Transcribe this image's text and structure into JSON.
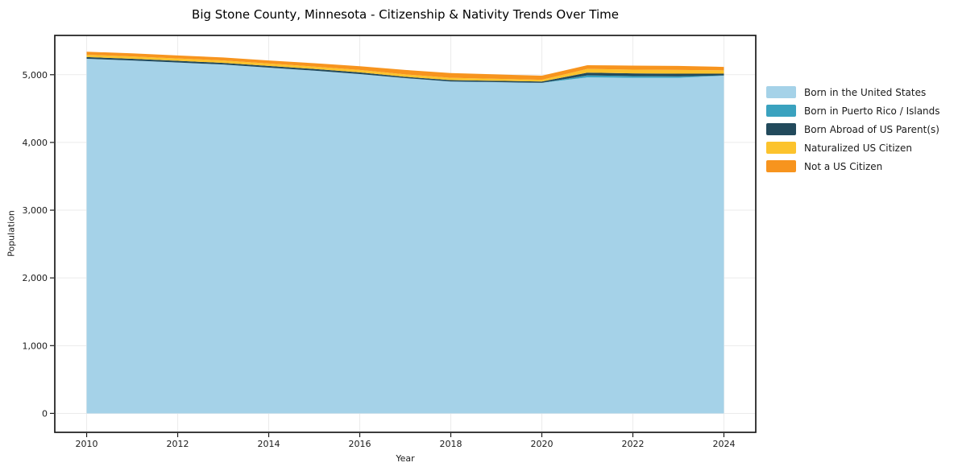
{
  "chart_data": {
    "type": "area",
    "stacked": true,
    "title": "Big Stone County, Minnesota - Citizenship & Nativity Trends Over Time",
    "xlabel": "Year",
    "ylabel": "Population",
    "x": [
      2010,
      2011,
      2012,
      2013,
      2014,
      2015,
      2016,
      2017,
      2018,
      2019,
      2020,
      2021,
      2022,
      2023,
      2024
    ],
    "series": [
      {
        "name": "Born in the United States",
        "color": "#a5d2e8",
        "values": [
          5235,
          5210,
          5180,
          5150,
          5105,
          5060,
          5010,
          4950,
          4900,
          4890,
          4880,
          4960,
          4955,
          4955,
          4985
        ]
      },
      {
        "name": "Born in Puerto Rico / Islands",
        "color": "#3aa2bf",
        "values": [
          0,
          0,
          0,
          0,
          0,
          0,
          0,
          0,
          0,
          0,
          0,
          30,
          25,
          20,
          5
        ]
      },
      {
        "name": "Born Abroad of US Parent(s)",
        "color": "#224a5c",
        "values": [
          25,
          25,
          25,
          25,
          25,
          25,
          25,
          20,
          20,
          20,
          20,
          40,
          40,
          40,
          25
        ]
      },
      {
        "name": "Naturalized US Citizen",
        "color": "#fcc32d",
        "values": [
          35,
          35,
          35,
          35,
          35,
          35,
          35,
          35,
          35,
          30,
          25,
          55,
          55,
          55,
          50
        ]
      },
      {
        "name": "Not a US Citizen",
        "color": "#f7941e",
        "values": [
          45,
          45,
          45,
          45,
          45,
          50,
          55,
          65,
          70,
          65,
          60,
          55,
          60,
          60,
          50
        ]
      }
    ],
    "totals": [
      5340,
      5315,
      5285,
      5255,
      5210,
      5170,
      5125,
      5070,
      5025,
      5005,
      4985,
      5140,
      5135,
      5130,
      5115
    ],
    "xticks": [
      "2010",
      "2012",
      "2014",
      "2016",
      "2018",
      "2020",
      "2022",
      "2024"
    ],
    "xtick_values": [
      2010,
      2012,
      2014,
      2016,
      2018,
      2020,
      2022,
      2024
    ],
    "yticks": [
      "0",
      "1,000",
      "2,000",
      "3,000",
      "4,000",
      "5,000"
    ],
    "ytick_values": [
      0,
      1000,
      2000,
      3000,
      4000,
      5000
    ],
    "xlim": [
      2009.3,
      2024.7
    ],
    "ylim": [
      -280,
      5580
    ],
    "grid": true,
    "legend_position": "right"
  },
  "colors": {
    "background": "#ffffff",
    "grid": "#ebebeb",
    "axis": "#1a1a1a",
    "title": "#000000"
  }
}
